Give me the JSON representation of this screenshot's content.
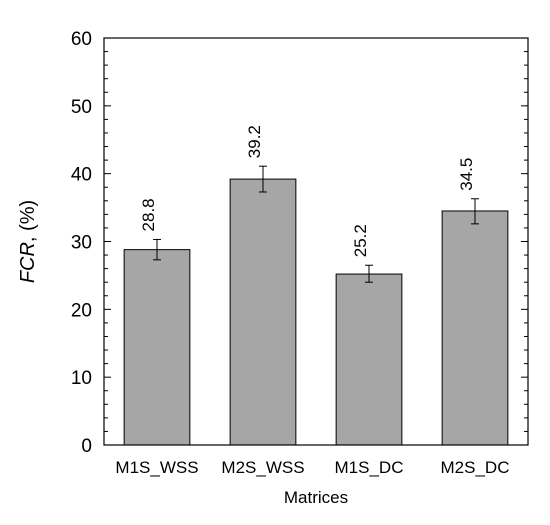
{
  "chart_data": {
    "type": "bar",
    "categories": [
      "M1S_WSS",
      "M2S_WSS",
      "M1S_DC",
      "M2S_DC"
    ],
    "values": [
      28.8,
      39.2,
      25.2,
      34.5
    ],
    "value_labels": [
      "28.8",
      "39.2",
      "25.2",
      "34.5"
    ],
    "error_low": [
      27.3,
      37.3,
      24.0,
      32.6
    ],
    "error_high": [
      30.3,
      41.1,
      26.5,
      36.3
    ],
    "title": "",
    "xlabel": "Matrices",
    "ylabel_italic": "FCR",
    "ylabel_rest": ", (%)",
    "ylim": [
      0,
      60
    ],
    "yticks": [
      0,
      10,
      20,
      30,
      40,
      50,
      60
    ],
    "ytick_labels": [
      "0",
      "10",
      "20",
      "30",
      "40",
      "50",
      "60"
    ],
    "grid": false,
    "bar_color": "#a6a6a6"
  }
}
